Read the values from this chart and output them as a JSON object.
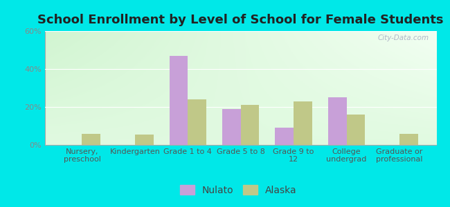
{
  "title": "School Enrollment by Level of School for Female Students",
  "categories": [
    "Nursery,\npreschool",
    "Kindergarten",
    "Grade 1 to 4",
    "Grade 5 to 8",
    "Grade 9 to\n12",
    "College\nundergrad",
    "Graduate or\nprofessional"
  ],
  "nulato": [
    0,
    0,
    47,
    19,
    9,
    25,
    0
  ],
  "alaska": [
    6,
    5.5,
    24,
    21,
    23,
    16,
    6
  ],
  "nulato_color": "#c8a0d8",
  "alaska_color": "#c0c888",
  "background_color": "#00e8e8",
  "ylim": [
    0,
    60
  ],
  "yticks": [
    0,
    20,
    40,
    60
  ],
  "ytick_labels": [
    "0%",
    "20%",
    "40%",
    "60%"
  ],
  "bar_width": 0.35,
  "title_fontsize": 13,
  "tick_fontsize": 8,
  "legend_fontsize": 10
}
